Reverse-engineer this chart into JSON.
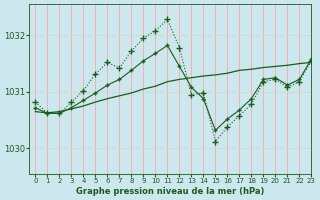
{
  "title": "Graphe pression niveau de la mer (hPa)",
  "bg_color": "#cce8ee",
  "grid_color_v": "#ff9999",
  "grid_color_h": "#ccddcc",
  "line_color": "#1a5c1a",
  "xlim": [
    -0.5,
    23
  ],
  "ylim": [
    1029.55,
    1032.55
  ],
  "yticks": [
    1030,
    1031,
    1032
  ],
  "xticks": [
    0,
    1,
    2,
    3,
    4,
    5,
    6,
    7,
    8,
    9,
    10,
    11,
    12,
    13,
    14,
    15,
    16,
    17,
    18,
    19,
    20,
    21,
    22,
    23
  ],
  "s1_x": [
    0,
    1,
    2,
    3,
    4,
    5,
    6,
    7,
    8,
    9,
    10,
    11,
    12,
    13,
    14,
    15,
    16,
    17,
    18,
    19,
    20,
    21,
    22,
    23
  ],
  "s1_y": [
    1030.82,
    1030.62,
    1030.62,
    1030.82,
    1031.02,
    1031.32,
    1031.52,
    1031.42,
    1031.72,
    1031.95,
    1032.08,
    1032.28,
    1031.78,
    1030.95,
    1030.98,
    1030.12,
    1030.38,
    1030.58,
    1030.78,
    1031.18,
    1031.22,
    1031.08,
    1031.18,
    1031.55
  ],
  "s2_x": [
    0,
    1,
    2,
    3,
    4,
    5,
    6,
    7,
    8,
    9,
    10,
    11,
    12,
    13,
    14,
    15,
    16,
    17,
    18,
    19,
    20,
    21,
    22,
    23
  ],
  "s2_y": [
    1030.65,
    1030.63,
    1030.65,
    1030.7,
    1030.75,
    1030.82,
    1030.88,
    1030.93,
    1030.98,
    1031.05,
    1031.1,
    1031.18,
    1031.22,
    1031.25,
    1031.28,
    1031.3,
    1031.33,
    1031.38,
    1031.4,
    1031.43,
    1031.45,
    1031.47,
    1031.5,
    1031.52
  ],
  "s3_x": [
    0,
    1,
    2,
    3,
    4,
    5,
    6,
    7,
    8,
    9,
    10,
    11,
    12,
    13,
    14,
    15,
    16,
    17,
    18,
    19,
    20,
    21,
    22,
    23
  ],
  "s3_y": [
    1030.72,
    1030.62,
    1030.62,
    1030.72,
    1030.85,
    1030.98,
    1031.12,
    1031.22,
    1031.38,
    1031.55,
    1031.68,
    1031.82,
    1031.45,
    1031.08,
    1030.88,
    1030.32,
    1030.52,
    1030.68,
    1030.88,
    1031.22,
    1031.25,
    1031.12,
    1031.22,
    1031.58
  ]
}
